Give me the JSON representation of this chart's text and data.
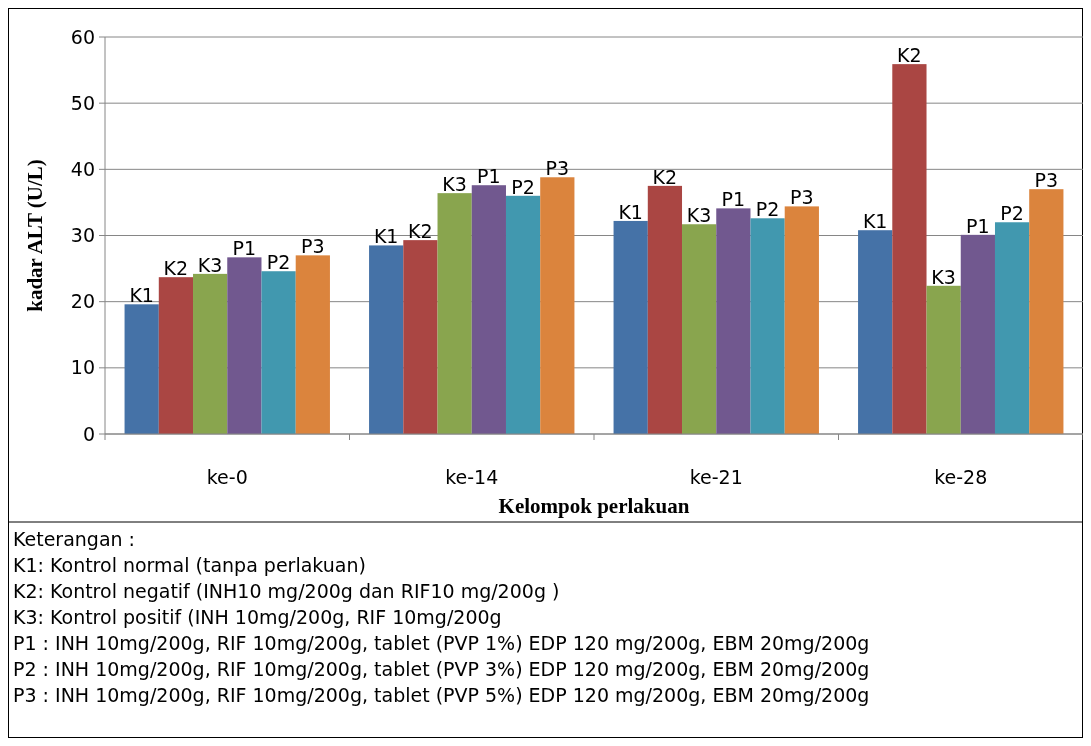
{
  "chart_data": {
    "type": "bar",
    "xlabel": "Kelompok perlakuan",
    "ylabel": "kadar ALT (U/L)",
    "categories": [
      "ke-0",
      "ke-14",
      "ke-21",
      "ke-28"
    ],
    "series": [
      {
        "name": "K1",
        "color": "#4572a7",
        "values": [
          19.6,
          28.5,
          32.2,
          30.8
        ]
      },
      {
        "name": "K2",
        "color": "#aa4643",
        "values": [
          23.7,
          29.3,
          37.5,
          55.9
        ]
      },
      {
        "name": "K3",
        "color": "#89a54e",
        "values": [
          24.2,
          36.4,
          31.7,
          22.4
        ]
      },
      {
        "name": "P1",
        "color": "#71588f",
        "values": [
          26.7,
          37.6,
          34.1,
          30.1
        ]
      },
      {
        "name": "P2",
        "color": "#4198af",
        "values": [
          24.6,
          36.0,
          32.6,
          32.0
        ]
      },
      {
        "name": "P3",
        "color": "#db843d",
        "values": [
          27.0,
          38.8,
          34.4,
          37.0
        ]
      }
    ],
    "ylim": [
      0,
      60
    ],
    "yticks": [
      0,
      10,
      20,
      30,
      40,
      50,
      60
    ],
    "grid": "y",
    "annotations": [
      "Keterangan :",
      "K1: Kontrol normal (tanpa perlakuan)",
      "K2: Kontrol negatif (INH10 mg/200g  dan RIF10 mg/200g )",
      "K3: Kontrol positif (INH 10mg/200g, RIF 10mg/200g",
      "P1 : INH 10mg/200g, RIF 10mg/200g, tablet (PVP 1%) EDP 120 mg/200g, EBM 20mg/200g",
      "P2 : INH 10mg/200g, RIF 10mg/200g, tablet (PVP 3%) EDP 120 mg/200g, EBM 20mg/200g",
      "P3 : INH 10mg/200g, RIF 10mg/200g, tablet (PVP 5%) EDP 120 mg/200g, EBM 20mg/200g"
    ]
  }
}
